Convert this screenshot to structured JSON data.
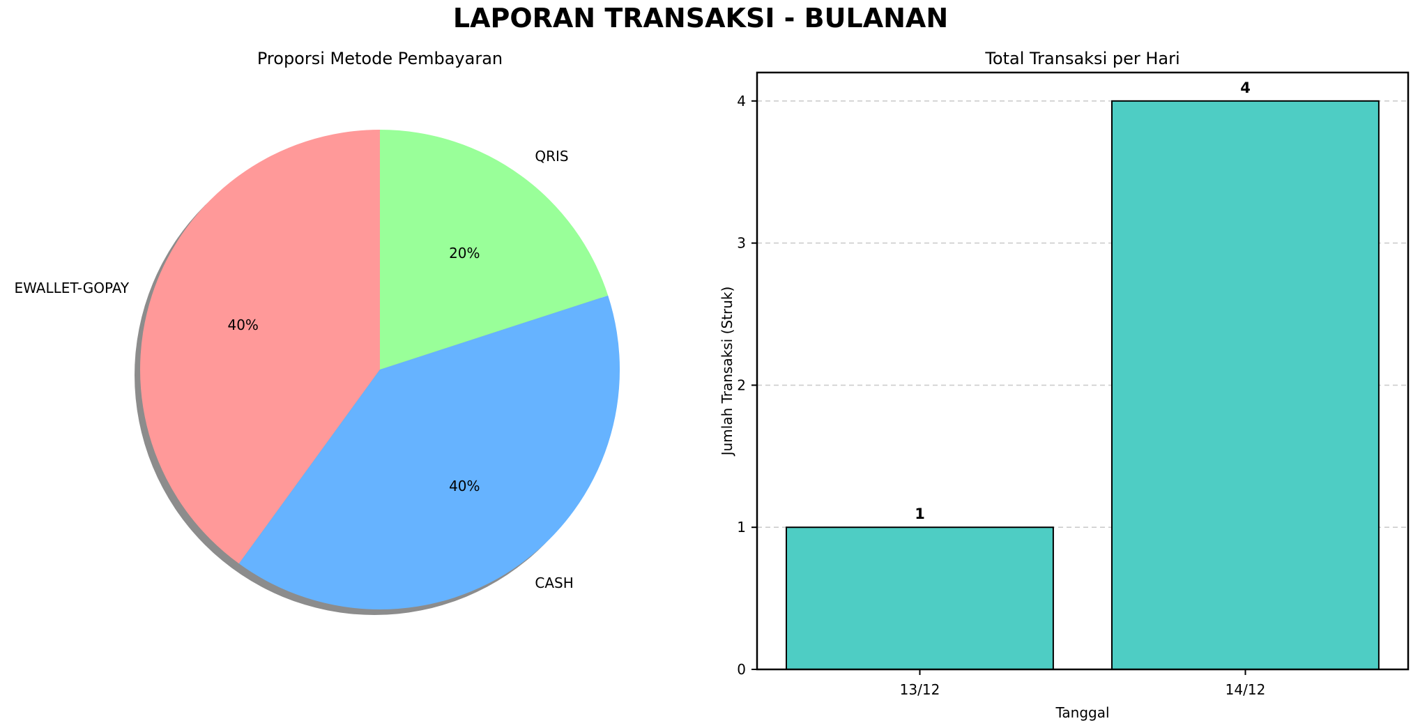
{
  "suptitle": "LAPORAN TRANSAKSI - BULANAN",
  "chart_data": [
    {
      "type": "pie",
      "title": "Proporsi Metode Pembayaran",
      "labels": [
        "EWALLET-GOPAY",
        "CASH",
        "QRIS"
      ],
      "values": [
        40,
        40,
        20
      ],
      "pct_labels": [
        "40%",
        "40%",
        "20%"
      ],
      "colors": [
        "#ff9999",
        "#66b3ff",
        "#99ff99"
      ],
      "startangle": 90,
      "counterclock": true,
      "shadow": true,
      "shadow_color": "#8c8c8c",
      "labeldistance": 1.1,
      "pctdistance": 0.6
    },
    {
      "type": "bar",
      "title": "Total Transaksi per Hari",
      "categories": [
        "13/12",
        "14/12"
      ],
      "values": [
        1,
        4
      ],
      "value_labels": [
        "1",
        "4"
      ],
      "xlabel": "Tanggal",
      "ylabel": "Jumlah Transaksi (Struk)",
      "yticks": [
        "0",
        "1",
        "2",
        "3",
        "4"
      ],
      "ylim": [
        0,
        4.2
      ],
      "bar_color": "#4ECDC4",
      "bar_edge_color": "#000000",
      "grid": "horizontal-dashed",
      "grid_color": "#cccccc",
      "legend": "none"
    }
  ]
}
